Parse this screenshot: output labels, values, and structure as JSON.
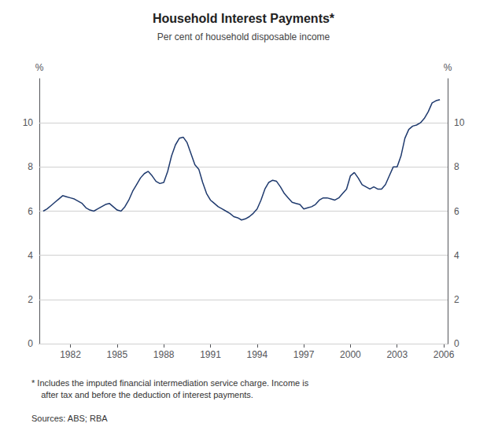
{
  "chart_data": {
    "type": "line",
    "title": "Household Interest Payments*",
    "subtitle": "Per cent of household disposable income",
    "ylabel": "%",
    "y2label": "%",
    "footnote": "* Includes the imputed financial intermediation service charge. Income is\n    after tax and before the deduction of interest payments.",
    "sources": "Sources: ABS; RBA",
    "color": "#1f3a6e",
    "grid": true,
    "xlim": [
      1980.0,
      2006.25
    ],
    "xticks": [
      1982,
      1985,
      1988,
      1991,
      1994,
      1997,
      2000,
      2003,
      2006
    ],
    "ylim": [
      0,
      12
    ],
    "yticks": [
      0,
      2,
      4,
      6,
      8,
      10
    ],
    "y2lim": [
      0,
      12
    ],
    "y2ticks": [
      0,
      2,
      4,
      6,
      8,
      10
    ],
    "x": [
      1980.25,
      1980.5,
      1980.75,
      1981.0,
      1981.25,
      1981.5,
      1981.75,
      1982.0,
      1982.25,
      1982.5,
      1982.75,
      1983.0,
      1983.25,
      1983.5,
      1983.75,
      1984.0,
      1984.25,
      1984.5,
      1984.75,
      1985.0,
      1985.25,
      1985.5,
      1985.75,
      1986.0,
      1986.25,
      1986.5,
      1986.75,
      1987.0,
      1987.25,
      1987.5,
      1987.75,
      1988.0,
      1988.25,
      1988.5,
      1988.75,
      1989.0,
      1989.25,
      1989.5,
      1989.75,
      1990.0,
      1990.25,
      1990.5,
      1990.75,
      1991.0,
      1991.25,
      1991.5,
      1991.75,
      1992.0,
      1992.25,
      1992.5,
      1992.75,
      1993.0,
      1993.25,
      1993.5,
      1993.75,
      1994.0,
      1994.25,
      1994.5,
      1994.75,
      1995.0,
      1995.25,
      1995.5,
      1995.75,
      1996.0,
      1996.25,
      1996.5,
      1996.75,
      1997.0,
      1997.25,
      1997.5,
      1997.75,
      1998.0,
      1998.25,
      1998.5,
      1998.75,
      1999.0,
      1999.25,
      1999.5,
      1999.75,
      2000.0,
      2000.25,
      2000.5,
      2000.75,
      2001.0,
      2001.25,
      2001.5,
      2001.75,
      2002.0,
      2002.25,
      2002.5,
      2002.75,
      2003.0,
      2003.25,
      2003.5,
      2003.75,
      2004.0,
      2004.25,
      2004.5,
      2004.75,
      2005.0,
      2005.25,
      2005.5,
      2005.75
    ],
    "values": [
      6.0,
      6.1,
      6.25,
      6.4,
      6.55,
      6.7,
      6.65,
      6.6,
      6.55,
      6.45,
      6.35,
      6.15,
      6.05,
      6.0,
      6.1,
      6.2,
      6.3,
      6.35,
      6.2,
      6.05,
      6.0,
      6.2,
      6.5,
      6.9,
      7.2,
      7.5,
      7.7,
      7.8,
      7.6,
      7.35,
      7.25,
      7.3,
      7.8,
      8.5,
      9.0,
      9.3,
      9.35,
      9.1,
      8.6,
      8.1,
      7.9,
      7.3,
      6.8,
      6.5,
      6.35,
      6.2,
      6.1,
      6.0,
      5.9,
      5.75,
      5.7,
      5.6,
      5.65,
      5.75,
      5.9,
      6.1,
      6.5,
      7.0,
      7.3,
      7.4,
      7.35,
      7.1,
      6.8,
      6.6,
      6.4,
      6.35,
      6.3,
      6.1,
      6.15,
      6.2,
      6.3,
      6.5,
      6.6,
      6.6,
      6.55,
      6.5,
      6.6,
      6.8,
      7.0,
      7.6,
      7.75,
      7.5,
      7.2,
      7.1,
      7.0,
      7.1,
      7.0,
      7.0,
      7.2,
      7.6,
      8.0,
      8.0,
      8.5,
      9.3,
      9.7,
      9.85,
      9.9,
      10.0,
      10.2,
      10.5,
      10.9,
      11.0,
      11.05
    ]
  }
}
